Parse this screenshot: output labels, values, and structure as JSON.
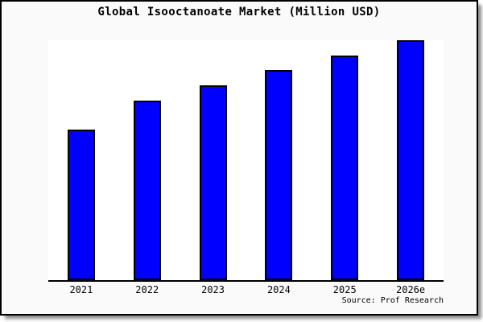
{
  "window": {
    "page_background": "#ffffff",
    "frame_background": "#fafafa",
    "plot_background": "#ffffff",
    "frame_border_color": "#000000",
    "shadow_color": "#999999"
  },
  "chart_data": {
    "type": "bar",
    "title": "Global Isooctanoate Market (Million USD)",
    "categories": [
      "2021",
      "2022",
      "2023",
      "2024",
      "2025",
      "2026e"
    ],
    "values": [
      62.8,
      74.8,
      81.2,
      87.6,
      93.6,
      100.0
    ],
    "value_note": "No y-axis, gridlines or data labels are shown; values are relative bar heights with the tallest bar (2026e) = 100.",
    "xlabel": "",
    "ylabel": "",
    "ylim": [
      0,
      100
    ],
    "grid": false,
    "legend": false,
    "bar_color": "#0000ff",
    "bar_border_color": "#000000",
    "axis_line_color": "#000000",
    "source": "Source: Prof Research"
  }
}
